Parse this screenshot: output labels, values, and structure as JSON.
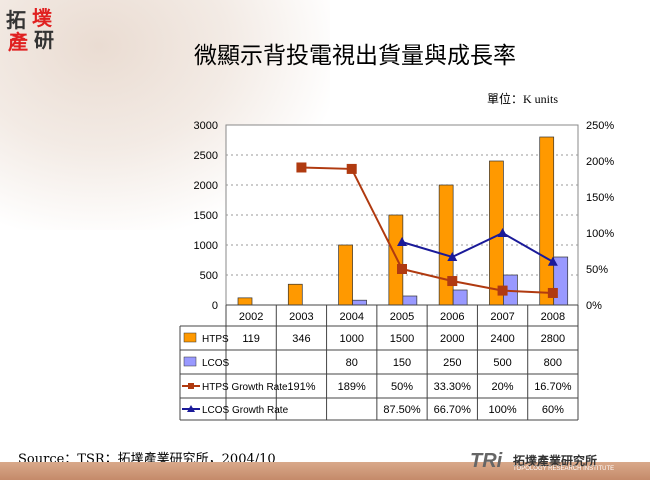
{
  "logo": {
    "chars": [
      "拓",
      "墣",
      "產",
      "研"
    ]
  },
  "title": "微顯示背投電視出貨量與成長率",
  "unit": "單位：K units",
  "source": "Source：TSR；拓墣產業研究所，2004/10",
  "footer": {
    "logo": "TRi",
    "name_cn": "拓墣產業研究所",
    "name_en": "TOPOLOGY RESEARCH INSTITUTE"
  },
  "chart_data": {
    "type": "bar",
    "categories": [
      "2002",
      "2003",
      "2004",
      "2005",
      "2006",
      "2007",
      "2008"
    ],
    "left_axis": {
      "ylim": [
        0,
        3000
      ],
      "ticks": [
        "0",
        "500",
        "1000",
        "1500",
        "2000",
        "2500",
        "3000"
      ]
    },
    "right_axis": {
      "ylim": [
        0,
        250
      ],
      "ticks": [
        "0%",
        "50%",
        "100%",
        "150%",
        "200%",
        "250%"
      ]
    },
    "series": [
      {
        "name": "HTPS",
        "type": "bar",
        "axis": "left",
        "color": "#ff9900",
        "values": [
          119,
          346,
          1000,
          1500,
          2000,
          2400,
          2800
        ],
        "labels": [
          "119",
          "346",
          "1000",
          "1500",
          "2000",
          "2400",
          "2800"
        ]
      },
      {
        "name": "LCOS",
        "type": "bar",
        "axis": "left",
        "color": "#9999ff",
        "values": [
          null,
          null,
          80,
          150,
          250,
          500,
          800
        ],
        "labels": [
          "",
          "",
          "80",
          "150",
          "250",
          "500",
          "800"
        ]
      },
      {
        "name": "HTPS Growth Rate",
        "type": "line",
        "axis": "right",
        "color": "#b03a10",
        "marker": "square",
        "values": [
          null,
          191,
          189,
          50,
          33.3,
          20,
          16.7
        ],
        "labels": [
          "",
          "191%",
          "189%",
          "50%",
          "33.30%",
          "20%",
          "16.70%"
        ]
      },
      {
        "name": "LCOS Growth Rate",
        "type": "line",
        "axis": "right",
        "color": "#1a1a99",
        "marker": "triangle",
        "values": [
          null,
          null,
          null,
          87.5,
          66.7,
          100,
          60
        ],
        "labels": [
          "",
          "",
          "",
          "87.50%",
          "66.70%",
          "100%",
          "60%"
        ]
      }
    ],
    "grid": true,
    "legend": "data-table"
  }
}
